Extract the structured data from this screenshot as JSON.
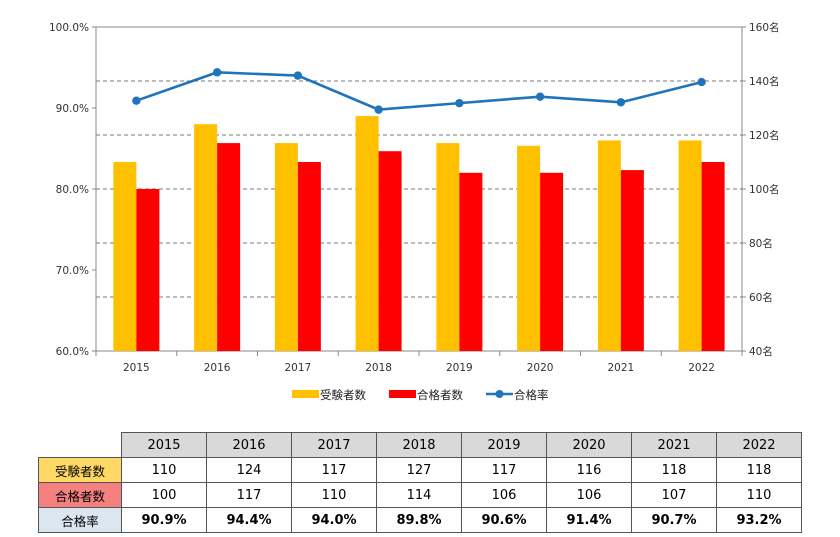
{
  "chart_data": {
    "type": "bar",
    "categories": [
      "2015",
      "2016",
      "2017",
      "2018",
      "2019",
      "2020",
      "2021",
      "2022"
    ],
    "series": [
      {
        "name": "受験者数",
        "type": "bar",
        "axis": "right",
        "color": "#ffc000",
        "values": [
          110,
          124,
          117,
          127,
          117,
          116,
          118,
          118
        ]
      },
      {
        "name": "合格者数",
        "type": "bar",
        "axis": "right",
        "color": "#ff0000",
        "values": [
          100,
          117,
          110,
          114,
          106,
          106,
          107,
          110
        ]
      },
      {
        "name": "合格率",
        "type": "line",
        "axis": "left",
        "color": "#1f74bb",
        "values": [
          90.9,
          94.4,
          94.0,
          89.8,
          90.6,
          91.4,
          90.7,
          93.2
        ]
      }
    ],
    "left_axis": {
      "ylim": [
        60,
        100
      ],
      "ticks": [
        "60.0%",
        "70.0%",
        "80.0%",
        "90.0%",
        "100.0%"
      ]
    },
    "right_axis": {
      "ylim": [
        40,
        160
      ],
      "ticks": [
        "40名",
        "60名",
        "80名",
        "100名",
        "120名",
        "140名",
        "160名"
      ]
    },
    "grid": "dashed-horizontal",
    "legend_position": "bottom"
  },
  "table": {
    "headers": [
      "2015",
      "2016",
      "2017",
      "2018",
      "2019",
      "2020",
      "2021",
      "2022"
    ],
    "rows": [
      {
        "label": "受験者数",
        "color": "#ffd966",
        "values": [
          "110",
          "124",
          "117",
          "127",
          "117",
          "116",
          "118",
          "118"
        ]
      },
      {
        "label": "合格者数",
        "color": "#f4817f",
        "values": [
          "100",
          "117",
          "110",
          "114",
          "106",
          "106",
          "107",
          "110"
        ]
      },
      {
        "label": "合格率",
        "color": "#dce6f1",
        "values": [
          "90.9%",
          "94.4%",
          "94.0%",
          "89.8%",
          "90.6%",
          "91.4%",
          "90.7%",
          "93.2%"
        ]
      }
    ]
  }
}
